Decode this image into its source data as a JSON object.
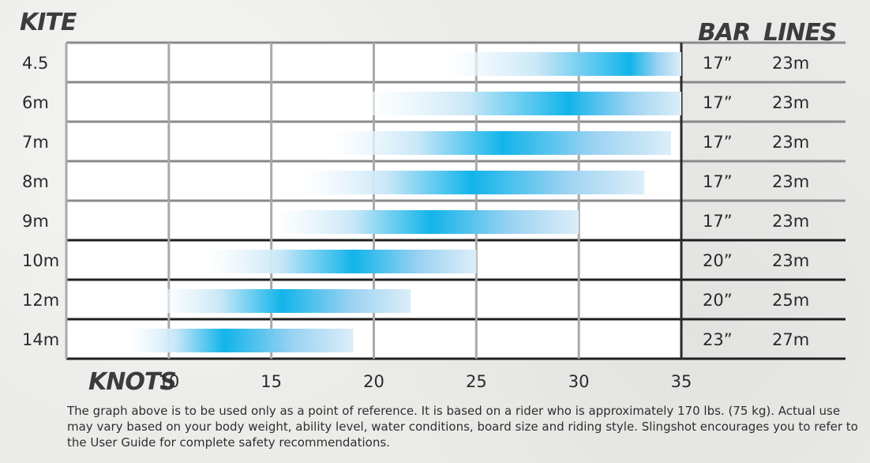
{
  "chart_data": {
    "type": "bar",
    "title": "",
    "row_axis_label": "KITE",
    "xlabel": "KNOTS",
    "column_headers": [
      "BAR",
      "LINES"
    ],
    "xlim": [
      5,
      35
    ],
    "xticks": [
      10,
      15,
      20,
      25,
      30,
      35
    ],
    "bar_gradient_colors": [
      "#ffffff",
      "#12b4ea"
    ],
    "series": [
      {
        "kite": "4.5",
        "wind_min": 23.5,
        "wind_peak": 32.5,
        "wind_max": 35,
        "bar": "17”",
        "lines": "23m"
      },
      {
        "kite": "6m",
        "wind_min": 19.8,
        "wind_peak": 29.5,
        "wind_max": 35,
        "bar": "17”",
        "lines": "23m"
      },
      {
        "kite": "7m",
        "wind_min": 18.0,
        "wind_peak": 26.3,
        "wind_max": 34.5,
        "bar": "17”",
        "lines": "23m"
      },
      {
        "kite": "8m",
        "wind_min": 16.5,
        "wind_peak": 24.8,
        "wind_max": 33.2,
        "bar": "17”",
        "lines": "23m"
      },
      {
        "kite": "9m",
        "wind_min": 15.2,
        "wind_peak": 22.8,
        "wind_max": 30.0,
        "bar": "17”",
        "lines": "23m"
      },
      {
        "kite": "10m",
        "wind_min": 11.9,
        "wind_peak": 19.0,
        "wind_max": 25.0,
        "bar": "20”",
        "lines": "23m"
      },
      {
        "kite": "12m",
        "wind_min": 9.6,
        "wind_peak": 15.5,
        "wind_max": 21.8,
        "bar": "20”",
        "lines": "25m"
      },
      {
        "kite": "14m",
        "wind_min": 8.0,
        "wind_peak": 12.7,
        "wind_max": 19.0,
        "bar": "23”",
        "lines": "27m"
      }
    ]
  },
  "footnote": "The graph above is to be used only as a point of reference. It is based on a rider who is approximately 170 lbs. (75 kg). Actual use may vary based on your body weight, ability level, water conditions, board size and riding style. Slingshot encourages you to refer to the User Guide for complete safety recommendations."
}
